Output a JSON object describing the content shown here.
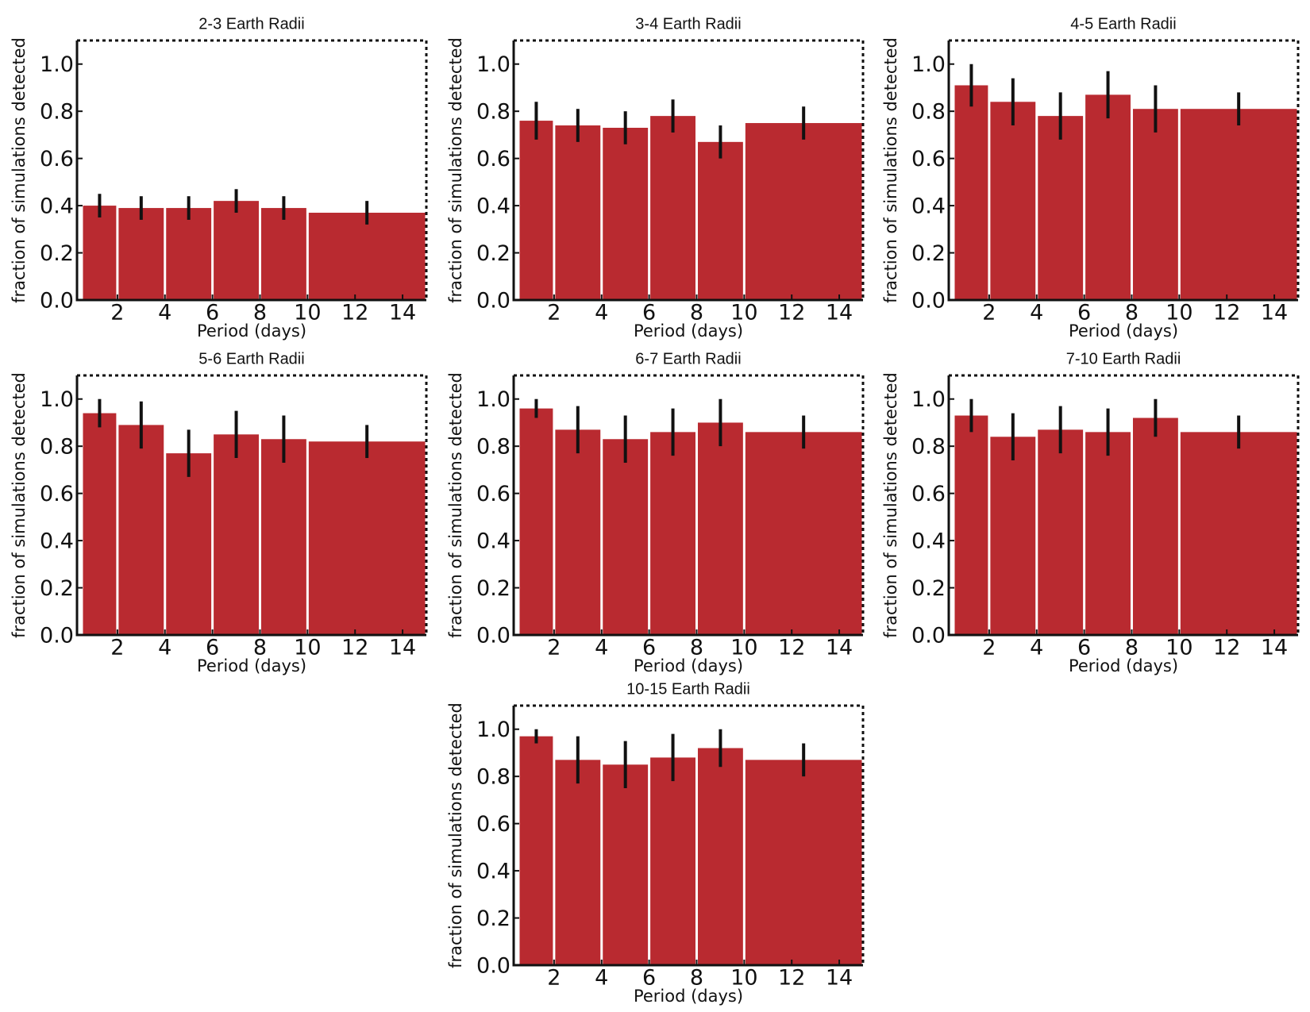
{
  "chart_data": [
    {
      "type": "histogram",
      "title": "2-3 Earth Radii",
      "xlabel": "Period (days)",
      "ylabel": "fraction of simulations detected",
      "bins": [
        0.5,
        2,
        4,
        6,
        8,
        10,
        15
      ],
      "values": [
        0.4,
        0.39,
        0.39,
        0.42,
        0.39,
        0.37
      ],
      "errors": [
        0.05,
        0.05,
        0.05,
        0.05,
        0.05,
        0.05
      ],
      "color": "#b92a30",
      "xlim": [
        0.3,
        15
      ],
      "xticks": [
        2,
        4,
        6,
        8,
        10,
        12,
        14
      ],
      "ylim": [
        0,
        1.1
      ],
      "yticks": [
        {
          "value": 0,
          "label": "0.0"
        },
        {
          "value": 0.2,
          "label": "0.2"
        },
        {
          "value": 0.4,
          "label": "0.4"
        },
        {
          "value": 0.6,
          "label": "0.6"
        },
        {
          "value": 0.8,
          "label": "0.8"
        },
        {
          "value": 1,
          "label": "1.0"
        }
      ]
    },
    {
      "type": "histogram",
      "title": "3-4 Earth Radii",
      "xlabel": "Period (days)",
      "ylabel": "fraction of simulations detected",
      "bins": [
        0.5,
        2,
        4,
        6,
        8,
        10,
        15
      ],
      "values": [
        0.76,
        0.74,
        0.73,
        0.78,
        0.67,
        0.75
      ],
      "errors": [
        0.08,
        0.07,
        0.07,
        0.07,
        0.07,
        0.07
      ],
      "color": "#b92a30",
      "xlim": [
        0.3,
        15
      ],
      "xticks": [
        2,
        4,
        6,
        8,
        10,
        12,
        14
      ],
      "ylim": [
        0,
        1.1
      ],
      "yticks": [
        {
          "value": 0,
          "label": "0.0"
        },
        {
          "value": 0.2,
          "label": "0.2"
        },
        {
          "value": 0.4,
          "label": "0.4"
        },
        {
          "value": 0.6,
          "label": "0.6"
        },
        {
          "value": 0.8,
          "label": "0.8"
        },
        {
          "value": 1,
          "label": "1.0"
        }
      ]
    },
    {
      "type": "histogram",
      "title": "4-5 Earth Radii",
      "xlabel": "Period (days)",
      "ylabel": "fraction of simulations detected",
      "bins": [
        0.5,
        2,
        4,
        6,
        8,
        10,
        15
      ],
      "values": [
        0.91,
        0.84,
        0.78,
        0.87,
        0.81,
        0.81
      ],
      "errors": [
        0.09,
        0.1,
        0.1,
        0.1,
        0.1,
        0.07
      ],
      "color": "#b92a30",
      "xlim": [
        0.3,
        15
      ],
      "xticks": [
        2,
        4,
        6,
        8,
        10,
        12,
        14
      ],
      "ylim": [
        0,
        1.1
      ],
      "yticks": [
        {
          "value": 0,
          "label": "0.0"
        },
        {
          "value": 0.2,
          "label": "0.2"
        },
        {
          "value": 0.4,
          "label": "0.4"
        },
        {
          "value": 0.6,
          "label": "0.6"
        },
        {
          "value": 0.8,
          "label": "0.8"
        },
        {
          "value": 1,
          "label": "1.0"
        }
      ]
    },
    {
      "type": "histogram",
      "title": "5-6 Earth Radii",
      "xlabel": "Period (days)",
      "ylabel": "fraction of simulations detected",
      "bins": [
        0.5,
        2,
        4,
        6,
        8,
        10,
        15
      ],
      "values": [
        0.94,
        0.89,
        0.77,
        0.85,
        0.83,
        0.82
      ],
      "errors": [
        0.06,
        0.1,
        0.1,
        0.1,
        0.1,
        0.07
      ],
      "color": "#b92a30",
      "xlim": [
        0.3,
        15
      ],
      "xticks": [
        2,
        4,
        6,
        8,
        10,
        12,
        14
      ],
      "ylim": [
        0,
        1.1
      ],
      "yticks": [
        {
          "value": 0,
          "label": "0.0"
        },
        {
          "value": 0.2,
          "label": "0.2"
        },
        {
          "value": 0.4,
          "label": "0.4"
        },
        {
          "value": 0.6,
          "label": "0.6"
        },
        {
          "value": 0.8,
          "label": "0.8"
        },
        {
          "value": 1,
          "label": "1.0"
        }
      ]
    },
    {
      "type": "histogram",
      "title": "6-7 Earth Radii",
      "xlabel": "Period (days)",
      "ylabel": "fraction of simulations detected",
      "bins": [
        0.5,
        2,
        4,
        6,
        8,
        10,
        15
      ],
      "values": [
        0.96,
        0.87,
        0.83,
        0.86,
        0.9,
        0.86
      ],
      "errors": [
        0.04,
        0.1,
        0.1,
        0.1,
        0.1,
        0.07
      ],
      "color": "#b92a30",
      "xlim": [
        0.3,
        15
      ],
      "xticks": [
        2,
        4,
        6,
        8,
        10,
        12,
        14
      ],
      "ylim": [
        0,
        1.1
      ],
      "yticks": [
        {
          "value": 0,
          "label": "0.0"
        },
        {
          "value": 0.2,
          "label": "0.2"
        },
        {
          "value": 0.4,
          "label": "0.4"
        },
        {
          "value": 0.6,
          "label": "0.6"
        },
        {
          "value": 0.8,
          "label": "0.8"
        },
        {
          "value": 1,
          "label": "1.0"
        }
      ]
    },
    {
      "type": "histogram",
      "title": "7-10 Earth Radii",
      "xlabel": "Period (days)",
      "ylabel": "fraction of simulations detected",
      "bins": [
        0.5,
        2,
        4,
        6,
        8,
        10,
        15
      ],
      "values": [
        0.93,
        0.84,
        0.87,
        0.86,
        0.92,
        0.86
      ],
      "errors": [
        0.07,
        0.1,
        0.1,
        0.1,
        0.08,
        0.07
      ],
      "color": "#b92a30",
      "xlim": [
        0.3,
        15
      ],
      "xticks": [
        2,
        4,
        6,
        8,
        10,
        12,
        14
      ],
      "ylim": [
        0,
        1.1
      ],
      "yticks": [
        {
          "value": 0,
          "label": "0.0"
        },
        {
          "value": 0.2,
          "label": "0.2"
        },
        {
          "value": 0.4,
          "label": "0.4"
        },
        {
          "value": 0.6,
          "label": "0.6"
        },
        {
          "value": 0.8,
          "label": "0.8"
        },
        {
          "value": 1,
          "label": "1.0"
        }
      ]
    },
    {
      "type": "histogram",
      "title": "10-15 Earth Radii",
      "xlabel": "Period (days)",
      "ylabel": "fraction of simulations detected",
      "bins": [
        0.5,
        2,
        4,
        6,
        8,
        10,
        15
      ],
      "values": [
        0.97,
        0.87,
        0.85,
        0.88,
        0.92,
        0.87
      ],
      "errors": [
        0.03,
        0.1,
        0.1,
        0.1,
        0.08,
        0.07
      ],
      "color": "#b92a30",
      "xlim": [
        0.3,
        15
      ],
      "xticks": [
        2,
        4,
        6,
        8,
        10,
        12,
        14
      ],
      "ylim": [
        0,
        1.1
      ],
      "yticks": [
        {
          "value": 0,
          "label": "0.0"
        },
        {
          "value": 0.2,
          "label": "0.2"
        },
        {
          "value": 0.4,
          "label": "0.4"
        },
        {
          "value": 0.6,
          "label": "0.6"
        },
        {
          "value": 0.8,
          "label": "0.8"
        },
        {
          "value": 1,
          "label": "1.0"
        }
      ]
    }
  ]
}
